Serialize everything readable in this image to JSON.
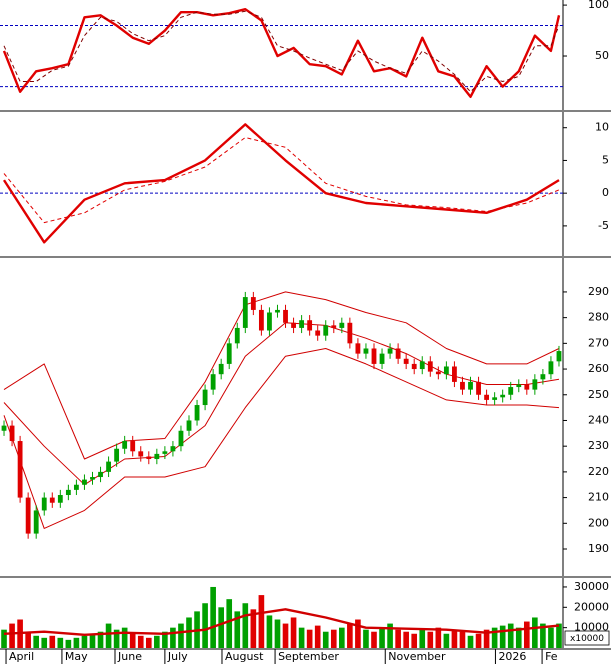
{
  "chart_data": [
    {
      "type": "line",
      "xlim": [
        -0.5,
        69.5
      ],
      "ylim": [
        -3,
        105
      ],
      "yticks": [
        50,
        100
      ],
      "reference_lines": [
        80,
        20
      ],
      "reference_color": "#0000c0",
      "x": [
        0,
        2,
        4,
        6,
        8,
        10,
        12,
        14,
        16,
        18,
        20,
        22,
        24,
        26,
        28,
        30,
        32,
        34,
        36,
        38,
        40,
        42,
        44,
        46,
        48,
        50,
        52,
        54,
        56,
        58,
        60,
        62,
        64,
        66,
        68,
        69
      ],
      "series": [
        {
          "color": "#e00000",
          "values": [
            55,
            15,
            35,
            38,
            42,
            88,
            90,
            80,
            68,
            62,
            75,
            93,
            93,
            90,
            92,
            96,
            85,
            50,
            58,
            42,
            40,
            32,
            65,
            35,
            38,
            30,
            68,
            35,
            30,
            10,
            40,
            20,
            35,
            70,
            55,
            90
          ]
        },
        {
          "color": "#800000",
          "dashed": true,
          "values": [
            60,
            25,
            25,
            36,
            40,
            70,
            88,
            84,
            72,
            65,
            70,
            88,
            93,
            91,
            91,
            94,
            88,
            60,
            55,
            48,
            42,
            36,
            55,
            45,
            38,
            33,
            55,
            45,
            32,
            15,
            30,
            25,
            30,
            60,
            60,
            80
          ]
        }
      ]
    },
    {
      "type": "line",
      "xlim": [
        -0.5,
        69.5
      ],
      "ylim": [
        -9.6,
        12.4
      ],
      "yticks": [
        -5,
        0,
        5,
        10
      ],
      "reference_lines": [
        0
      ],
      "reference_color": "#0000c0",
      "x": [
        0,
        5,
        10,
        15,
        20,
        25,
        30,
        35,
        40,
        45,
        50,
        55,
        60,
        65,
        69
      ],
      "series": [
        {
          "color": "#e00000",
          "values": [
            2,
            -7.5,
            -1,
            1.5,
            2,
            5,
            10.5,
            5,
            0,
            -1.5,
            -2,
            -2.5,
            -3,
            -1,
            2
          ]
        },
        {
          "color": "#e00000",
          "dashed": true,
          "values": [
            3,
            -4.5,
            -3,
            0.5,
            1.8,
            4,
            8.5,
            7,
            1.5,
            -0.5,
            -1.8,
            -2.2,
            -2.8,
            -1.5,
            0.5
          ]
        }
      ]
    },
    {
      "type": "candlestick",
      "xlim": [
        -0.5,
        69.5
      ],
      "ylim": [
        179.5,
        303.2
      ],
      "yticks": [
        190,
        200,
        210,
        220,
        230,
        240,
        250,
        260,
        270,
        280,
        290
      ],
      "up_color": "#00a000",
      "down_color": "#e00000",
      "open": [
        236,
        238,
        232,
        210,
        196,
        205,
        210,
        208,
        211,
        213,
        215,
        217,
        218,
        220,
        224,
        229,
        232,
        228,
        226,
        225,
        227,
        228,
        230,
        236,
        240,
        246,
        252,
        258,
        262,
        270,
        276,
        288,
        283,
        275,
        282,
        283,
        278,
        276,
        279,
        275,
        273,
        277,
        276,
        278,
        270,
        266,
        268,
        262,
        266,
        268,
        264,
        262,
        260,
        263,
        259,
        258,
        261,
        255,
        252,
        255,
        250,
        248,
        249,
        250,
        253,
        254,
        252,
        256,
        258,
        263
      ],
      "high": [
        240,
        240,
        234,
        212,
        207,
        212,
        212,
        213,
        215,
        217,
        219,
        220,
        222,
        226,
        231,
        234,
        234,
        230,
        228,
        229,
        230,
        232,
        238,
        242,
        248,
        254,
        260,
        264,
        272,
        278,
        290,
        290,
        285,
        284,
        285,
        285,
        280,
        281,
        281,
        277,
        279,
        279,
        280,
        280,
        272,
        270,
        270,
        268,
        270,
        270,
        266,
        264,
        265,
        265,
        261,
        263,
        263,
        257,
        257,
        257,
        252,
        251,
        252,
        255,
        256,
        256,
        258,
        260,
        265,
        269
      ],
      "low": [
        234,
        230,
        208,
        194,
        194,
        203,
        206,
        206,
        209,
        211,
        213,
        215,
        216,
        218,
        222,
        227,
        226,
        224,
        223,
        223,
        225,
        226,
        228,
        234,
        238,
        244,
        250,
        256,
        260,
        268,
        274,
        281,
        273,
        273,
        280,
        276,
        274,
        274,
        273,
        271,
        271,
        274,
        274,
        268,
        264,
        264,
        260,
        260,
        264,
        262,
        260,
        258,
        258,
        257,
        256,
        256,
        253,
        250,
        250,
        248,
        246,
        246,
        247,
        248,
        251,
        250,
        250,
        254,
        256,
        261
      ],
      "close": [
        238,
        232,
        210,
        196,
        205,
        210,
        208,
        211,
        213,
        215,
        217,
        218,
        220,
        224,
        229,
        232,
        228,
        226,
        225,
        227,
        228,
        230,
        236,
        240,
        246,
        252,
        258,
        262,
        270,
        276,
        288,
        283,
        275,
        282,
        283,
        278,
        276,
        279,
        275,
        273,
        277,
        276,
        278,
        270,
        266,
        268,
        262,
        266,
        268,
        264,
        262,
        260,
        263,
        259,
        258,
        261,
        255,
        252,
        255,
        250,
        248,
        249,
        250,
        253,
        254,
        252,
        256,
        258,
        263,
        267
      ],
      "series": [
        {
          "color": "#d00000",
          "x": [
            0,
            5,
            10,
            15,
            20,
            25,
            30,
            35,
            40,
            45,
            50,
            55,
            60,
            65,
            69
          ],
          "values": [
            252,
            262,
            225,
            232,
            233,
            255,
            285,
            290,
            287,
            282,
            278,
            268,
            262,
            262,
            268
          ]
        },
        {
          "color": "#d00000",
          "x": [
            0,
            5,
            10,
            15,
            20,
            25,
            30,
            35,
            40,
            45,
            50,
            55,
            60,
            65,
            69
          ],
          "values": [
            247,
            230,
            215,
            225,
            226,
            238,
            265,
            278,
            277,
            272,
            266,
            258,
            254,
            254,
            256
          ]
        },
        {
          "color": "#d00000",
          "x": [
            0,
            5,
            10,
            15,
            20,
            25,
            30,
            35,
            40,
            45,
            50,
            55,
            60,
            65,
            69
          ],
          "values": [
            242,
            198,
            205,
            218,
            218,
            222,
            245,
            265,
            268,
            262,
            255,
            248,
            246,
            246,
            245
          ]
        }
      ]
    },
    {
      "type": "bar",
      "xlim": [
        -0.5,
        69.5
      ],
      "ylim": [
        0,
        34400
      ],
      "yticks": [
        10000,
        20000,
        30000
      ],
      "unit_label": "x10000",
      "xticks": [
        {
          "value": 0.25,
          "label": "April"
        },
        {
          "value": 7.2,
          "label": "May"
        },
        {
          "value": 13.8,
          "label": "June"
        },
        {
          "value": 20,
          "label": "July"
        },
        {
          "value": 27.1,
          "label": "August"
        },
        {
          "value": 33.7,
          "label": "September"
        },
        {
          "value": 47.4,
          "label": "November"
        },
        {
          "value": 61.1,
          "label": "2026"
        },
        {
          "value": 66.9,
          "label": "Fe"
        }
      ],
      "values": [
        9000,
        12000,
        14000,
        8000,
        6000,
        5000,
        6000,
        5000,
        4000,
        5000,
        6000,
        7000,
        8000,
        12000,
        9000,
        10000,
        7000,
        6000,
        5000,
        6000,
        8000,
        10000,
        12000,
        15000,
        18000,
        22000,
        30000,
        20000,
        24000,
        18000,
        22000,
        19000,
        26000,
        16000,
        14000,
        12000,
        15000,
        10000,
        9000,
        11000,
        8000,
        9000,
        10000,
        12000,
        14000,
        9000,
        8000,
        10000,
        12000,
        9000,
        8000,
        7000,
        9000,
        8000,
        10000,
        7000,
        9000,
        8000,
        6000,
        7000,
        9000,
        10000,
        11000,
        12000,
        10000,
        13000,
        15000,
        12000,
        10000,
        12000
      ],
      "series": [
        {
          "color": "#d00000",
          "x": [
            0,
            5,
            10,
            15,
            20,
            25,
            30,
            35,
            40,
            45,
            50,
            55,
            60,
            65,
            69
          ],
          "values": [
            7000,
            8000,
            6500,
            7500,
            7000,
            9000,
            16000,
            19000,
            15000,
            10000,
            9500,
            9000,
            7500,
            9500,
            11000
          ]
        }
      ]
    }
  ]
}
